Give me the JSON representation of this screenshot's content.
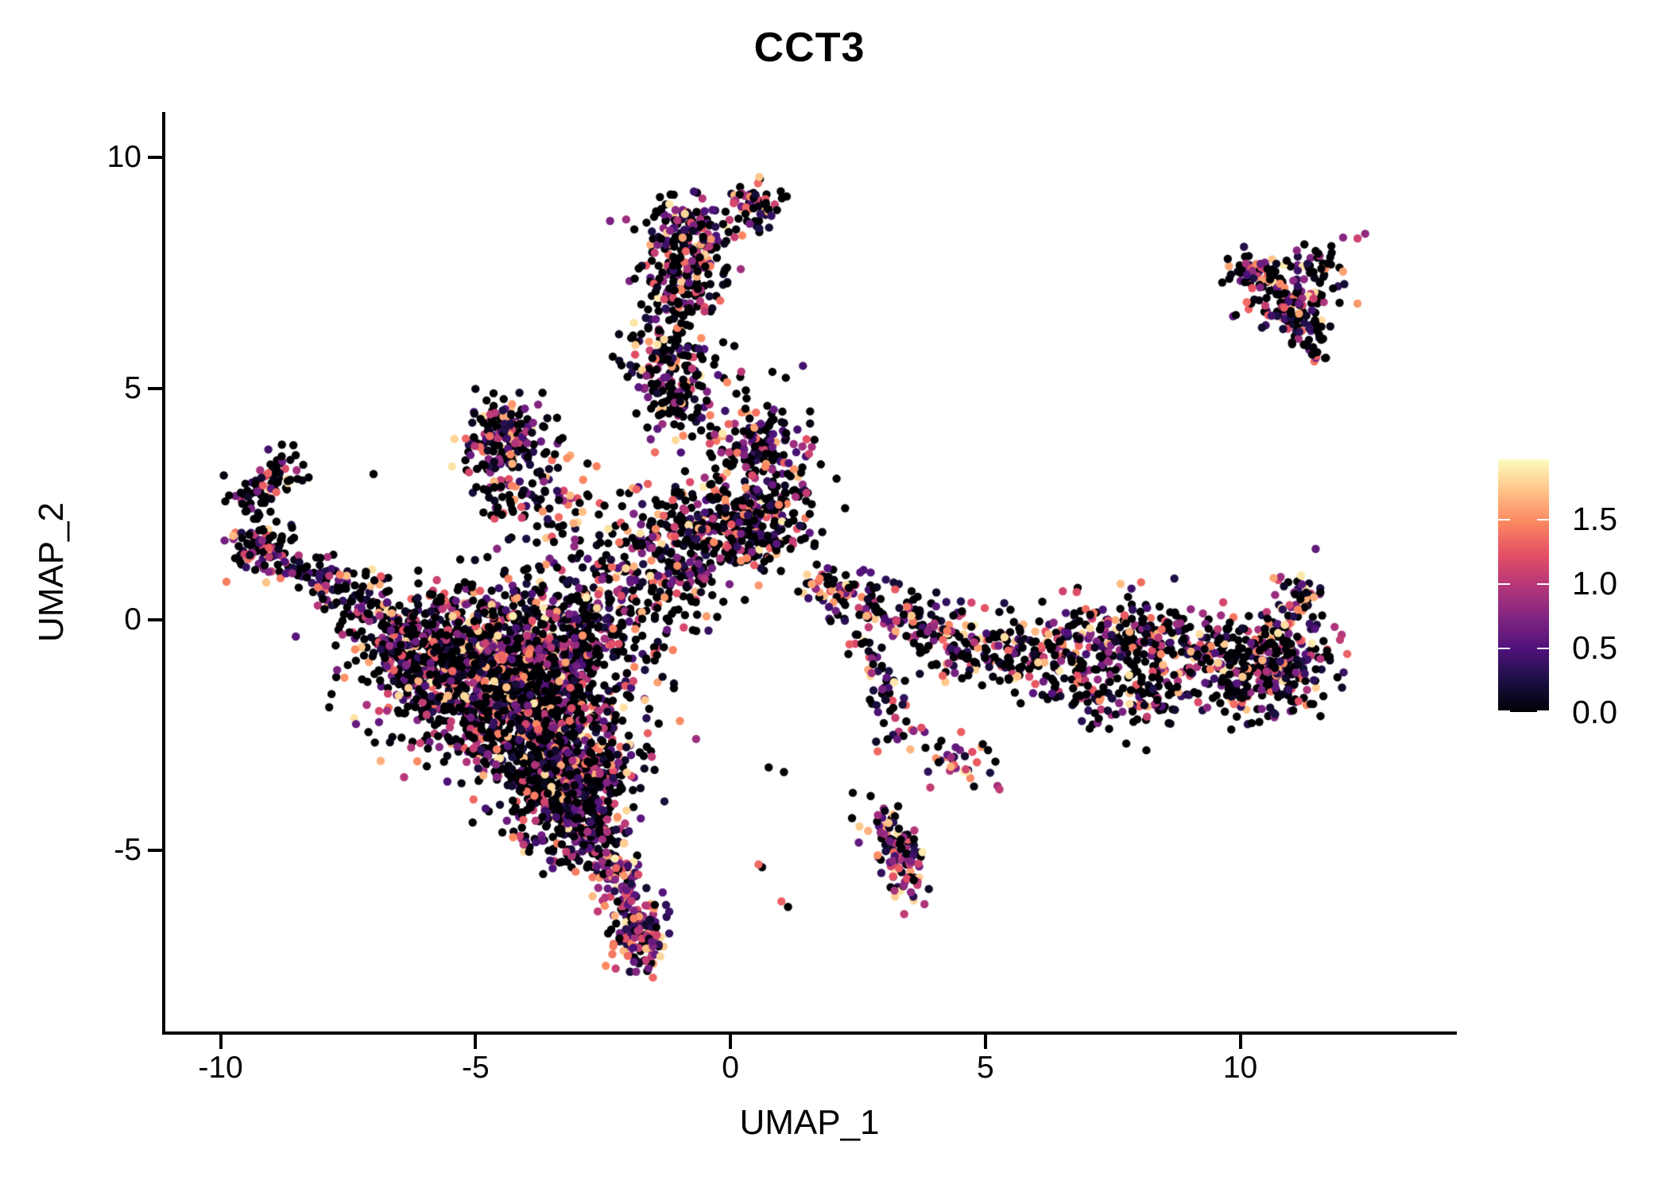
{
  "title": "CCT3",
  "chart_data": {
    "type": "scatter",
    "title": "CCT3",
    "xlabel": "UMAP_1",
    "ylabel": "UMAP_2",
    "xlim": [
      -11.1,
      14.2
    ],
    "ylim": [
      -8.95,
      10.95
    ],
    "x_ticks": [
      -10,
      -5,
      0,
      5,
      10
    ],
    "y_ticks": [
      -5,
      0,
      5,
      10
    ],
    "grid": false,
    "legend_position": "right",
    "legend": {
      "ticks": [
        0.0,
        0.5,
        1.0,
        1.5
      ],
      "tick_labels": [
        "0.0",
        "0.5",
        "1.0",
        "1.5"
      ],
      "max": 1.96
    },
    "colormap_name": "magma",
    "colormap": [
      [
        0.0,
        "#000004"
      ],
      [
        0.125,
        "#1c1044"
      ],
      [
        0.25,
        "#4f127b"
      ],
      [
        0.375,
        "#812581"
      ],
      [
        0.5,
        "#b5367a"
      ],
      [
        0.625,
        "#e55064"
      ],
      [
        0.75,
        "#fb8761"
      ],
      [
        0.875,
        "#fec287"
      ],
      [
        1.0,
        "#fcfdbf"
      ]
    ],
    "point_radius_px": 5.2,
    "seed": 20240613,
    "expression": {
      "vmax": 1.9,
      "zero_fraction": 0.44,
      "gamma": 1.6,
      "bright_zero_fraction": 0.18,
      "bright_gamma": 1.15
    },
    "clusters": [
      {
        "name": "top-blob",
        "type": "gauss",
        "n": 150,
        "cx": -0.85,
        "cy": 8.35,
        "sx": 0.45,
        "sy": 0.38
      },
      {
        "name": "top-knob",
        "type": "gauss",
        "n": 60,
        "cx": 0.45,
        "cy": 8.95,
        "sx": 0.3,
        "sy": 0.22
      },
      {
        "name": "top-trail",
        "type": "gauss",
        "n": 60,
        "cx": -0.7,
        "cy": 7.55,
        "sx": 0.5,
        "sy": 0.4
      },
      {
        "name": "column",
        "type": "chain",
        "n": 270,
        "pts": [
          [
            -1.0,
            7.2
          ],
          [
            -1.35,
            6.2
          ],
          [
            -1.2,
            5.2
          ],
          [
            -0.9,
            4.3
          ]
        ],
        "jitter": 0.38
      },
      {
        "name": "column-spur",
        "type": "gauss",
        "n": 140,
        "cx": 0.6,
        "cy": 3.75,
        "sx": 0.5,
        "sy": 0.45
      },
      {
        "name": "central-upper",
        "type": "gauss",
        "n": 260,
        "cx": -0.5,
        "cy": 2.1,
        "sx": 0.75,
        "sy": 0.6
      },
      {
        "name": "central-upper-east",
        "type": "gauss",
        "n": 170,
        "cx": 0.65,
        "cy": 2.25,
        "sx": 0.5,
        "sy": 0.5
      },
      {
        "name": "central-bridge",
        "type": "gauss",
        "n": 130,
        "cx": -1.3,
        "cy": 0.9,
        "sx": 0.65,
        "sy": 0.6
      },
      {
        "name": "triangle-apex",
        "type": "gauss",
        "n": 95,
        "cx": -4.35,
        "cy": 4.15,
        "sx": 0.3,
        "sy": 0.28
      },
      {
        "name": "triangle-fan",
        "type": "chain",
        "n": 120,
        "pts": [
          [
            -4.45,
            4.0
          ],
          [
            -3.9,
            3.0
          ],
          [
            -3.35,
            2.1
          ]
        ],
        "jitter": 0.5
      },
      {
        "name": "triangle-edge",
        "type": "chain",
        "n": 80,
        "pts": [
          [
            -4.6,
            4.2
          ],
          [
            -4.75,
            3.2
          ],
          [
            -4.3,
            2.4
          ]
        ],
        "jitter": 0.3
      },
      {
        "name": "arm-hook",
        "type": "chain",
        "n": 85,
        "pts": [
          [
            -8.55,
            3.35
          ],
          [
            -9.15,
            3.0
          ],
          [
            -9.4,
            2.4
          ]
        ],
        "jitter": 0.22
      },
      {
        "name": "arm-knot",
        "type": "gauss",
        "n": 95,
        "cx": -9.2,
        "cy": 1.55,
        "sx": 0.33,
        "sy": 0.35
      },
      {
        "name": "arm-diagonal",
        "type": "chain",
        "n": 115,
        "pts": [
          [
            -8.7,
            1.2
          ],
          [
            -7.6,
            0.6
          ],
          [
            -6.6,
            0.05
          ]
        ],
        "jitter": 0.32
      },
      {
        "name": "main-nw",
        "type": "gauss",
        "n": 1050,
        "cx": -4.9,
        "cy": -1.0,
        "sx": 1.05,
        "sy": 0.85
      },
      {
        "name": "main-core",
        "type": "gauss",
        "n": 850,
        "cx": -3.7,
        "cy": -2.4,
        "sx": 0.85,
        "sy": 0.95
      },
      {
        "name": "main-south",
        "type": "gauss",
        "n": 420,
        "cx": -3.05,
        "cy": -3.9,
        "sx": 0.5,
        "sy": 0.7
      },
      {
        "name": "main-north",
        "type": "gauss",
        "n": 330,
        "cx": -2.7,
        "cy": -0.1,
        "sx": 0.8,
        "sy": 0.85
      },
      {
        "name": "main-west",
        "type": "gauss",
        "n": 200,
        "cx": -6.25,
        "cy": -0.5,
        "sx": 0.6,
        "sy": 0.55
      },
      {
        "name": "tail-stream",
        "type": "chain",
        "n": 115,
        "pts": [
          [
            -2.7,
            -4.6
          ],
          [
            -2.2,
            -5.6
          ],
          [
            -1.95,
            -6.35
          ]
        ],
        "jitter": 0.3,
        "bright": true
      },
      {
        "name": "tail-blob",
        "type": "gauss",
        "n": 130,
        "cx": -1.85,
        "cy": -6.9,
        "sx": 0.3,
        "sy": 0.42,
        "bright": true
      },
      {
        "name": "band-start",
        "type": "chain",
        "n": 115,
        "pts": [
          [
            1.7,
            0.75
          ],
          [
            2.6,
            0.45
          ],
          [
            3.5,
            0.1
          ]
        ],
        "jitter": 0.28
      },
      {
        "name": "band-mid",
        "type": "chain",
        "n": 500,
        "pts": [
          [
            3.5,
            0.05
          ],
          [
            4.6,
            -0.6
          ],
          [
            5.9,
            -0.8
          ],
          [
            7.2,
            -0.6
          ],
          [
            8.3,
            -0.55
          ],
          [
            9.4,
            -0.75
          ]
        ],
        "jitter": 0.45
      },
      {
        "name": "band-low-lobe",
        "type": "chain",
        "n": 130,
        "pts": [
          [
            6.4,
            -1.6
          ],
          [
            7.7,
            -1.85
          ],
          [
            8.8,
            -1.6
          ]
        ],
        "jitter": 0.35
      },
      {
        "name": "band-end",
        "type": "gauss",
        "n": 310,
        "cx": 10.5,
        "cy": -1.0,
        "sx": 0.58,
        "sy": 0.52
      },
      {
        "name": "band-end-hook",
        "type": "chain",
        "n": 60,
        "pts": [
          [
            10.9,
            -0.3
          ],
          [
            11.1,
            0.4
          ],
          [
            11.35,
            1.05
          ]
        ],
        "jitter": 0.26,
        "bright": true
      },
      {
        "name": "band-sparse-top",
        "type": "gauss",
        "n": 55,
        "cx": 7.4,
        "cy": -0.05,
        "sx": 1.9,
        "sy": 0.45
      },
      {
        "name": "stream-down",
        "type": "chain",
        "n": 45,
        "pts": [
          [
            2.6,
            -0.25
          ],
          [
            2.9,
            -1.1
          ],
          [
            3.2,
            -1.9
          ]
        ],
        "jitter": 0.2
      },
      {
        "name": "stream-diag",
        "type": "chain",
        "n": 55,
        "pts": [
          [
            2.95,
            -2.35
          ],
          [
            3.9,
            -2.8
          ],
          [
            5.05,
            -3.35
          ]
        ],
        "jitter": 0.22,
        "bright": true
      },
      {
        "name": "isle-blob",
        "type": "chain",
        "n": 115,
        "pts": [
          [
            3.0,
            -4.35
          ],
          [
            3.3,
            -5.0
          ],
          [
            3.6,
            -5.85
          ]
        ],
        "jitter": 0.24,
        "bright": true
      },
      {
        "name": "topright-core",
        "type": "gauss",
        "n": 135,
        "cx": 11.05,
        "cy": 7.1,
        "sx": 0.5,
        "sy": 0.42
      },
      {
        "name": "topright-west-tail",
        "type": "chain",
        "n": 45,
        "pts": [
          [
            9.75,
            7.65
          ],
          [
            10.3,
            7.5
          ],
          [
            10.8,
            7.3
          ]
        ],
        "jitter": 0.18
      },
      {
        "name": "topright-south-spur",
        "type": "chain",
        "n": 55,
        "pts": [
          [
            11.0,
            6.9
          ],
          [
            11.3,
            6.3
          ],
          [
            11.45,
            5.7
          ]
        ],
        "jitter": 0.2
      },
      {
        "name": "topright-north-spur",
        "type": "chain",
        "n": 18,
        "pts": [
          [
            11.3,
            7.6
          ],
          [
            11.85,
            8.0
          ]
        ],
        "jitter": 0.15
      },
      {
        "name": "mid-sparse",
        "type": "gauss",
        "n": 9,
        "cx": 0.35,
        "cy": 5.4,
        "sx": 0.55,
        "sy": 0.75
      },
      {
        "name": "mid-sparse2",
        "type": "gauss",
        "n": 6,
        "cx": 1.7,
        "cy": 3.1,
        "sx": 0.45,
        "sy": 0.4
      }
    ],
    "singles": [
      {
        "x": 0.55,
        "y": -5.3,
        "v": 1.35
      },
      {
        "x": 0.62,
        "y": -5.36,
        "v": 0
      },
      {
        "x": 1.0,
        "y": -6.1,
        "v": 1.3
      },
      {
        "x": 1.13,
        "y": -6.22,
        "v": 0
      },
      {
        "x": 2.4,
        "y": -3.75,
        "v": 0
      },
      {
        "x": 2.75,
        "y": -3.82,
        "v": 0
      },
      {
        "x": 0.75,
        "y": -3.2,
        "v": 0
      },
      {
        "x": 1.05,
        "y": -3.3,
        "v": 0
      },
      {
        "x": 12.3,
        "y": 8.25,
        "v": 1.1
      },
      {
        "x": 12.45,
        "y": 8.35,
        "v": 0.8
      },
      {
        "x": -7.0,
        "y": 3.15,
        "v": 0
      },
      {
        "x": -5.3,
        "y": 1.3,
        "v": 0
      }
    ]
  }
}
